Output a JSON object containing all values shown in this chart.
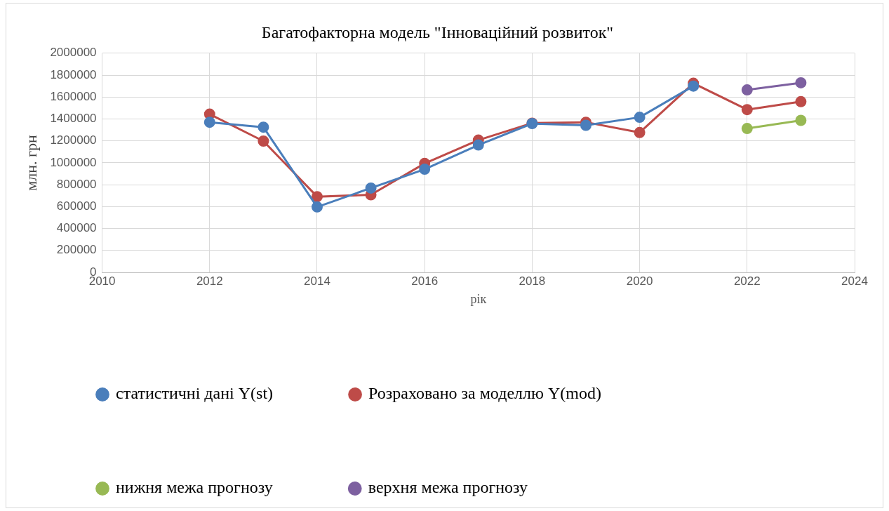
{
  "chart_data": {
    "type": "line",
    "title": "Багатофакторна модель \"Інноваційний розвиток\"",
    "xlabel": "рік",
    "ylabel": "млн. грн",
    "xlim": [
      2010,
      2024
    ],
    "xticks": [
      2010,
      2012,
      2014,
      2016,
      2018,
      2020,
      2022,
      2024
    ],
    "ylim": [
      0,
      2000000
    ],
    "yticks": [
      0,
      200000,
      400000,
      600000,
      800000,
      1000000,
      1200000,
      1400000,
      1600000,
      1800000,
      2000000
    ],
    "grid": true,
    "legend": "bottom",
    "marker": "circle",
    "line_style": "solid",
    "series": [
      {
        "name": "статистичні дані Y(st)",
        "color": "#4a7ebb",
        "x": [
          2012,
          2013,
          2014,
          2015,
          2016,
          2017,
          2018,
          2019,
          2020,
          2021
        ],
        "values": [
          1370000,
          1325000,
          597000,
          769000,
          941000,
          1162000,
          1358000,
          1342000,
          1415000,
          1700000
        ]
      },
      {
        "name": "Розраховано за моделлю Y(mod)",
        "color": "#be4b48",
        "x": [
          2012,
          2013,
          2014,
          2015,
          2016,
          2017,
          2018,
          2019,
          2020,
          2021,
          2022,
          2023
        ],
        "values": [
          1444000,
          1198000,
          691000,
          708000,
          994000,
          1207000,
          1362000,
          1370000,
          1276000,
          1726000,
          1485000,
          1558000
        ]
      },
      {
        "name": "нижня межа прогнозу",
        "color": "#98b954",
        "x": [
          2022,
          2023
        ],
        "values": [
          1313000,
          1387000
        ]
      },
      {
        "name": "верхня межа прогнозу",
        "color": "#7d60a0",
        "x": [
          2022,
          2023
        ],
        "values": [
          1665000,
          1730000
        ]
      }
    ]
  }
}
